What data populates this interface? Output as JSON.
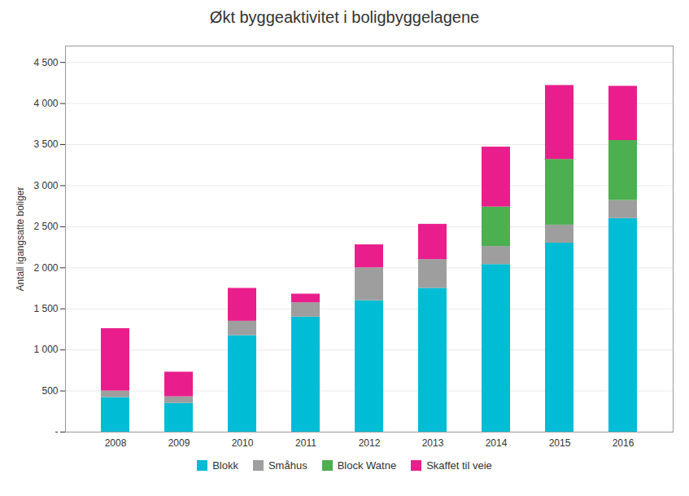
{
  "chart_data": {
    "type": "bar",
    "stacked": true,
    "title": "Økt byggeaktivitet i boligbyggelagene",
    "ylabel": "Antall igangsatte boliger",
    "categories": [
      "2008",
      "2009",
      "2010",
      "2011",
      "2012",
      "2013",
      "2014",
      "2015",
      "2016"
    ],
    "series": [
      {
        "name": "Blokk",
        "color": "#00BCD4",
        "values": [
          420,
          350,
          1175,
          1400,
          1600,
          1750,
          2040,
          2300,
          2600
        ]
      },
      {
        "name": "Småhus",
        "color": "#9E9E9E",
        "values": [
          80,
          80,
          175,
          175,
          400,
          350,
          220,
          220,
          220
        ]
      },
      {
        "name": "Block Watne",
        "color": "#4CAF50",
        "values": [
          0,
          0,
          0,
          0,
          0,
          0,
          480,
          800,
          730
        ]
      },
      {
        "name": "Skaffet til veie",
        "color": "#E91E8C",
        "values": [
          760,
          300,
          400,
          105,
          280,
          430,
          730,
          900,
          660
        ]
      }
    ],
    "ylim": [
      0,
      4700
    ],
    "yticks": [
      {
        "value": 0,
        "label": "-"
      },
      500,
      {
        "value": 1000,
        "label": "1 000"
      },
      {
        "value": 1500,
        "label": "1 500"
      },
      {
        "value": 2000,
        "label": "2 000"
      },
      {
        "value": 2500,
        "label": "2 500"
      },
      {
        "value": 3000,
        "label": "3 000"
      },
      {
        "value": 3500,
        "label": "3 500"
      },
      {
        "value": 4000,
        "label": "4 000"
      },
      {
        "value": 4500,
        "label": "4 500"
      }
    ],
    "grid": true,
    "legend": "bottom"
  }
}
